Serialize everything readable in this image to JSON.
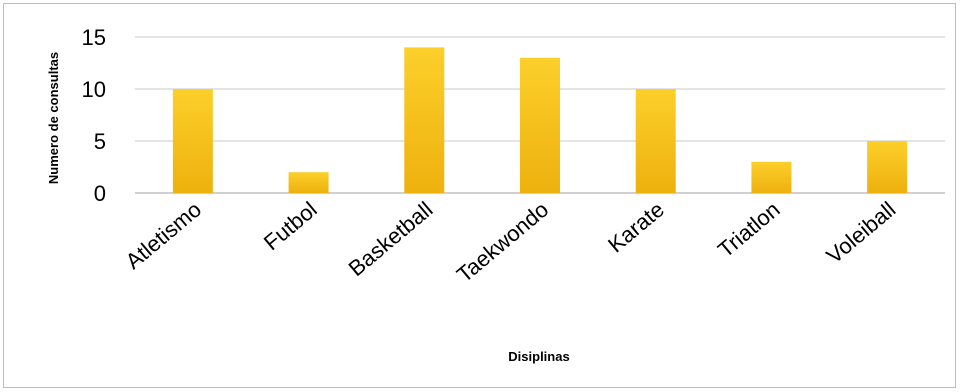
{
  "chart_data": {
    "type": "bar",
    "title": "",
    "xlabel": "Disiplinas",
    "ylabel": "Numero de consultas",
    "categories": [
      "Atletismo",
      "Futbol",
      "Basketball",
      "Taekwondo",
      "Karate",
      "Triatlon",
      "Voleiball"
    ],
    "values": [
      10,
      2,
      14,
      13,
      10,
      3,
      5
    ],
    "ylim": [
      0,
      15
    ],
    "yticks": [
      0,
      5,
      10,
      15
    ],
    "grid": true,
    "legend": "none",
    "bar_color": "#f7c21a"
  }
}
